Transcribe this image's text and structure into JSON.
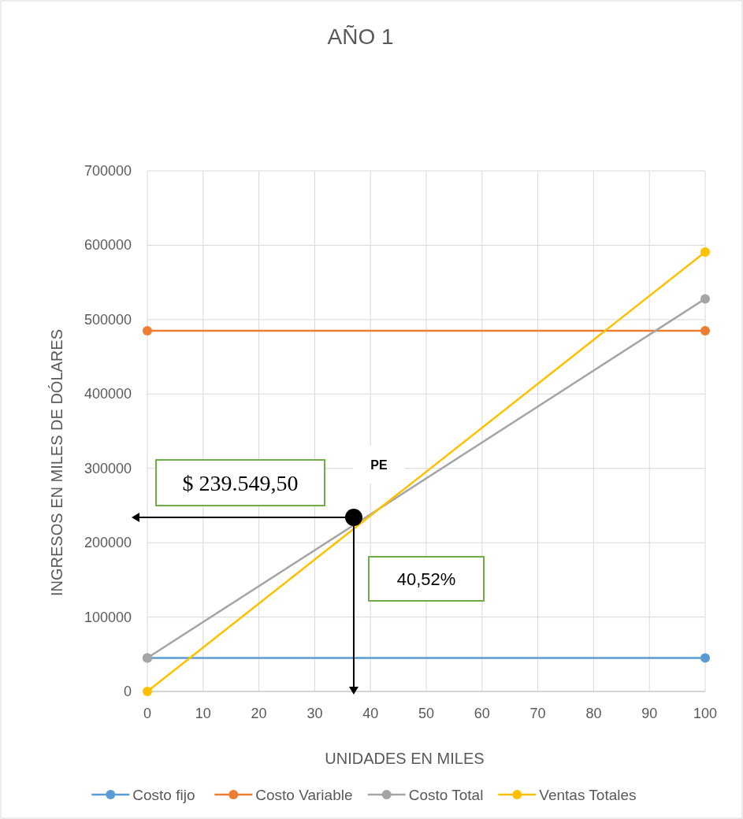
{
  "chart_data": {
    "type": "line",
    "title": "AÑO 1",
    "xlabel": "UNIDADES EN MILES",
    "ylabel": "INGRESOS EN MILES DE DÓLARES",
    "xlim": [
      0,
      100
    ],
    "xticks": [
      0,
      10,
      20,
      30,
      40,
      50,
      60,
      70,
      80,
      90,
      100
    ],
    "ylim": [
      0,
      700000
    ],
    "yticks": [
      0,
      100000,
      200000,
      300000,
      400000,
      500000,
      600000,
      700000
    ],
    "grid": true,
    "legend": "bottom",
    "marker": "circle",
    "series": [
      {
        "name": "Costo fijo",
        "color": "#5b9bd5",
        "x": [
          0,
          100
        ],
        "values": [
          45000,
          45000
        ]
      },
      {
        "name": "Costo Variable",
        "color": "#ed7d31",
        "x": [
          0,
          100
        ],
        "values": [
          485000,
          485000
        ]
      },
      {
        "name": "Costo Total",
        "color": "#a5a5a5",
        "x": [
          0,
          100
        ],
        "values": [
          45000,
          528000
        ]
      },
      {
        "name": "Ventas Totales",
        "color": "#ffc000",
        "x": [
          0,
          100
        ],
        "values": [
          0,
          591000
        ]
      },
      {
        "type": "scatter",
        "color": "#000000",
        "x": [
          37
        ],
        "values": [
          234000
        ]
      }
    ],
    "annotations": [
      "$ 239.549,50",
      "40,52%",
      "PE"
    ]
  }
}
